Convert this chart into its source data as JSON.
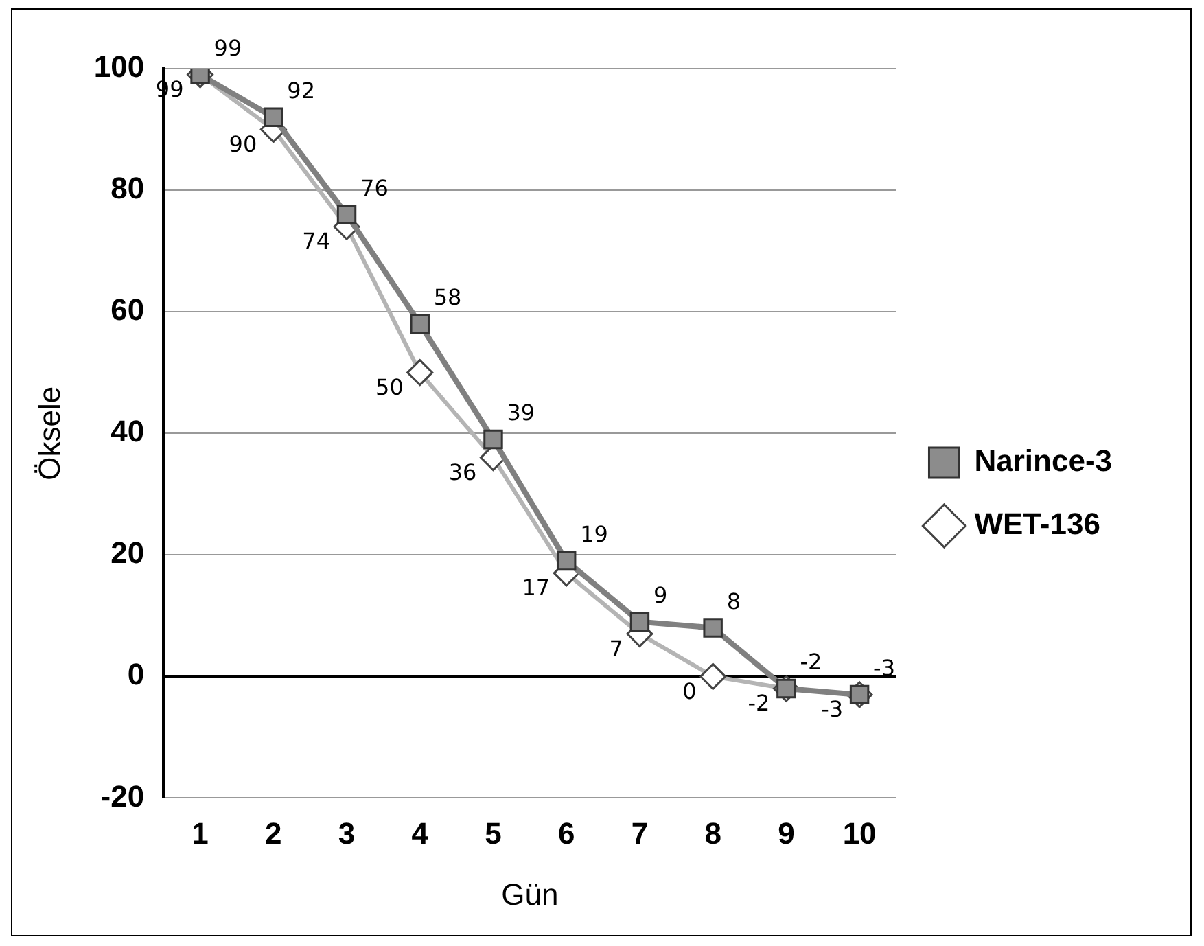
{
  "chart_data": {
    "type": "line",
    "xlabel": "Gün",
    "ylabel": "Öksele",
    "categories": [
      "1",
      "2",
      "3",
      "4",
      "5",
      "6",
      "7",
      "8",
      "9",
      "10"
    ],
    "ylim": [
      -20,
      100
    ],
    "yticks": [
      -20,
      0,
      20,
      40,
      60,
      80,
      100
    ],
    "grid": "y",
    "legend": "right",
    "series": [
      {
        "name": "Narince-3",
        "color": "#808080",
        "marker": "square",
        "values": [
          99,
          92,
          76,
          58,
          39,
          19,
          9,
          8,
          -2,
          -3
        ],
        "value_labels": [
          "99",
          "92",
          "76",
          "58",
          "39",
          "19",
          "9",
          "8",
          "-2",
          "-3"
        ]
      },
      {
        "name": "WET-136",
        "color": "#b4b4b4",
        "marker": "diamond",
        "values": [
          99,
          90,
          74,
          50,
          36,
          17,
          7,
          0,
          -2,
          -3
        ],
        "value_labels": [
          "99",
          "90",
          "74",
          "50",
          "36",
          "17",
          "7",
          "0",
          "-2",
          "-3"
        ]
      }
    ]
  }
}
